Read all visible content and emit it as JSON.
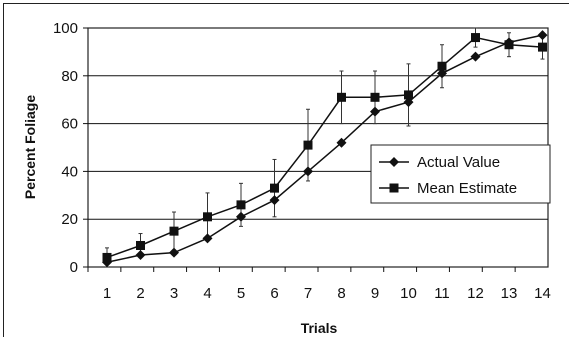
{
  "chart_data": {
    "type": "line",
    "title": "",
    "xlabel": "Trials",
    "ylabel": "Percent Foliage",
    "x": [
      1,
      2,
      3,
      4,
      5,
      6,
      7,
      8,
      9,
      10,
      11,
      12,
      13,
      14
    ],
    "ylim": [
      0,
      100
    ],
    "yticks": [
      0,
      20,
      40,
      60,
      80,
      100
    ],
    "grid": "horizontal",
    "legend_position": "right",
    "series": [
      {
        "name": "Actual Value",
        "marker": "diamond",
        "values": [
          2,
          5,
          6,
          12,
          21,
          28,
          40,
          52,
          65,
          69,
          81,
          88,
          94,
          97
        ],
        "error": []
      },
      {
        "name": "Mean Estimate",
        "marker": "square",
        "values": [
          4,
          9,
          15,
          21,
          26,
          33,
          51,
          71,
          71,
          72,
          84,
          96,
          93,
          92
        ],
        "error": [
          4,
          5,
          8,
          10,
          9,
          12,
          15,
          11,
          11,
          13,
          9,
          4,
          5,
          5
        ]
      }
    ],
    "colors": {
      "line": "#111111",
      "grid": "#111111",
      "background": "#ffffff"
    }
  }
}
